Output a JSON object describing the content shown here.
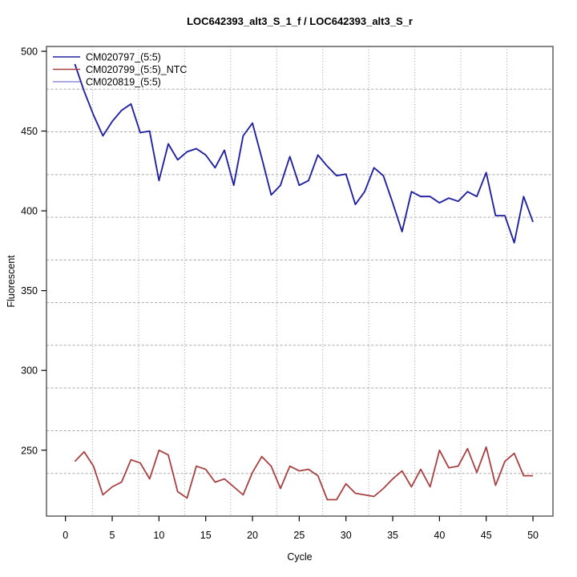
{
  "chart_data": {
    "type": "line",
    "title": "LOC642393_alt3_S_1_f / LOC642393_alt3_S_r",
    "xlabel": "Cycle",
    "ylabel": "Fluorescent",
    "xlim": [
      -2,
      52
    ],
    "ylim": [
      208,
      503
    ],
    "x_ticks": [
      0,
      5,
      10,
      15,
      20,
      25,
      30,
      35,
      40,
      45,
      50
    ],
    "y_ticks": [
      250,
      300,
      350,
      400,
      450,
      500
    ],
    "grid": true,
    "grid_style": "dotted",
    "legend_position": "top-left",
    "x": [
      1,
      2,
      3,
      4,
      5,
      6,
      7,
      8,
      9,
      10,
      11,
      12,
      13,
      14,
      15,
      16,
      17,
      18,
      19,
      20,
      21,
      22,
      23,
      24,
      25,
      26,
      27,
      28,
      29,
      30,
      31,
      32,
      33,
      34,
      35,
      36,
      37,
      38,
      39,
      40,
      41,
      42,
      43,
      44,
      45,
      46,
      47,
      48,
      49,
      50
    ],
    "series": [
      {
        "name": "CM020797_(5:5)",
        "color": "#2222a0",
        "values": [
          492,
          475,
          460,
          447,
          456,
          463,
          467,
          449,
          450,
          419,
          442,
          432,
          437,
          439,
          435,
          427,
          438,
          416,
          447,
          455,
          433,
          410,
          416,
          434,
          416,
          419,
          435,
          428,
          422,
          423,
          404,
          412,
          427,
          422,
          405,
          387,
          412,
          409,
          409,
          405,
          408,
          406,
          412,
          409,
          424,
          397,
          397,
          380,
          409,
          393
        ]
      },
      {
        "name": "CM020799_(5:5)_NTC",
        "color": "#a84040",
        "values": [
          243,
          249,
          240,
          222,
          227,
          230,
          244,
          242,
          232,
          250,
          247,
          224,
          220,
          240,
          238,
          230,
          232,
          227,
          222,
          236,
          246,
          240,
          226,
          240,
          237,
          238,
          234,
          219,
          219,
          229,
          223,
          222,
          221,
          226,
          232,
          237,
          227,
          238,
          227,
          250,
          239,
          240,
          251,
          236,
          252,
          228,
          243,
          248,
          234,
          234
        ]
      },
      {
        "name": "CM020819_(5:5)",
        "color": "#8e8ed6",
        "values": [
          492,
          475,
          460,
          447,
          456,
          463,
          467,
          449,
          450,
          419,
          442,
          432,
          437,
          439,
          435,
          427,
          438,
          416,
          447,
          455,
          433,
          410,
          416,
          434,
          416,
          419,
          435,
          428,
          422,
          423,
          404,
          412,
          427,
          422,
          405,
          387,
          412,
          409,
          409,
          405,
          408,
          406,
          412,
          409,
          424,
          397,
          397,
          380,
          409,
          393
        ]
      }
    ]
  },
  "colors": {
    "grid": "#aaaaaa",
    "frame": "#696969",
    "tick": "#000000",
    "background": "#ffffff"
  }
}
